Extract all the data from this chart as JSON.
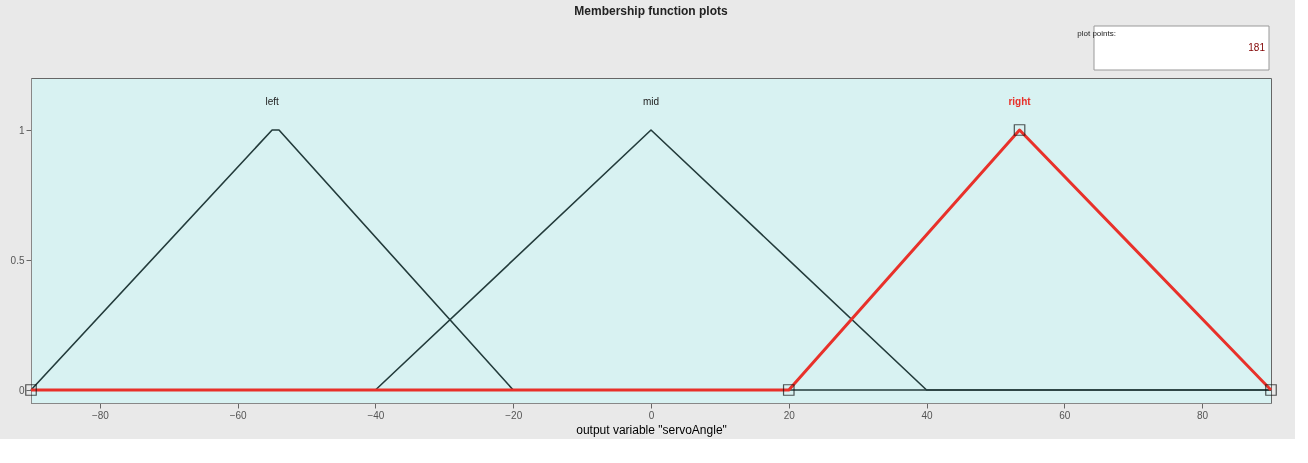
{
  "chart_data": {
    "type": "line",
    "title": "Membership function plots",
    "xlabel": "output variable \"servoAngle\"",
    "xlim": [
      -90,
      90
    ],
    "xticks": [
      -80,
      -60,
      -40,
      -20,
      0,
      20,
      40,
      60,
      80
    ],
    "ylim": [
      -0.05,
      1.2
    ],
    "yticks": [
      0,
      0.5,
      1
    ],
    "grid": false,
    "line_style": "solid",
    "series": [
      {
        "name": "left",
        "color": "#233b3b",
        "x": [
          -90,
          -55,
          -54,
          -20,
          90
        ],
        "values": [
          0,
          1,
          1,
          0,
          0
        ]
      },
      {
        "name": "mid",
        "color": "#233b3b",
        "x": [
          -90,
          -40,
          0,
          40,
          90
        ],
        "values": [
          0,
          0,
          1,
          0,
          0
        ]
      },
      {
        "name": "right",
        "color": "#e8312a",
        "marker": "square",
        "x": [
          -90,
          20,
          53.5,
          90
        ],
        "values": [
          0,
          0,
          1,
          0
        ]
      }
    ],
    "annotations": [
      "plot points:",
      "181"
    ]
  }
}
